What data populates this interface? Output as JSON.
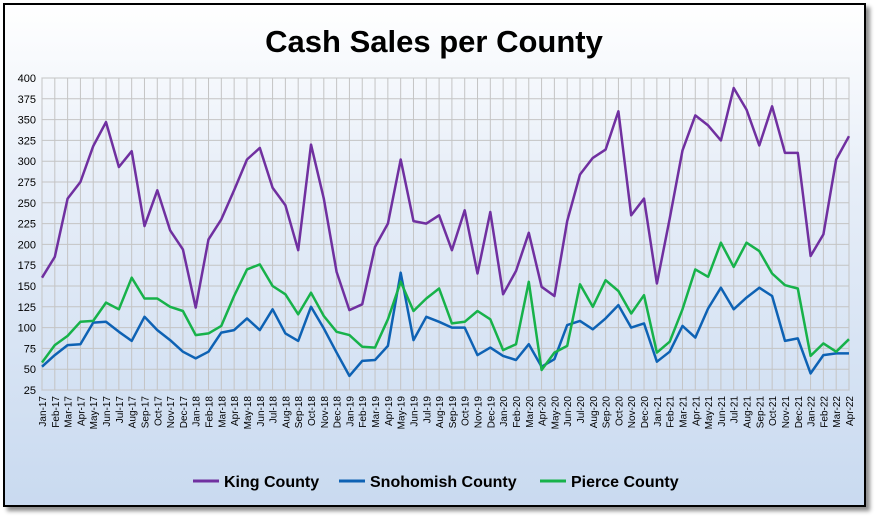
{
  "chart_data": {
    "type": "line",
    "title": "Cash Sales per County",
    "xlabel": "",
    "ylabel": "",
    "ylim": [
      25,
      400
    ],
    "yticks": [
      25,
      50,
      75,
      100,
      125,
      150,
      175,
      200,
      225,
      250,
      275,
      300,
      325,
      350,
      375,
      400
    ],
    "grid": true,
    "legend": "bottom",
    "categories": [
      "Jan-17",
      "Feb-17",
      "Mar-17",
      "Apr-17",
      "May-17",
      "Jun-17",
      "Jul-17",
      "Aug-17",
      "Sep-17",
      "Oct-17",
      "Nov-17",
      "Dec-17",
      "Jan-18",
      "Feb-18",
      "Mar-18",
      "Apr-18",
      "May-18",
      "Jun-18",
      "Jul-18",
      "Aug-18",
      "Sep-18",
      "Oct-18",
      "Nov-18",
      "Dec-18",
      "Jan-19",
      "Feb-19",
      "Mar-19",
      "Apr-19",
      "May-19",
      "Jun-19",
      "Jul-19",
      "Aug-19",
      "Sep-19",
      "Oct-19",
      "Nov-19",
      "Dec-19",
      "Jan-20",
      "Feb-20",
      "Mar-20",
      "Apr-20",
      "May-20",
      "Jun-20",
      "Jul-20",
      "Aug-20",
      "Sep-20",
      "Oct-20",
      "Nov-20",
      "Dec-20",
      "Jan-21",
      "Feb-21",
      "Mar-21",
      "Apr-21",
      "May-21",
      "Jun-21",
      "Jul-21",
      "Aug-21",
      "Sep-21",
      "Oct-21",
      "Nov-21",
      "Dec-21",
      "Jan-22",
      "Feb-22",
      "Mar-22",
      "Apr-22"
    ],
    "xticks_shown": [
      "Jan-17",
      "Mar-17",
      "May-17",
      "Jul-17",
      "Sep-17",
      "Nov-17",
      "Jan-18",
      "Mar-18",
      "May-18",
      "Jul-18",
      "Sep-18",
      "Nov-18",
      "Jan-19",
      "Mar-19",
      "May-19",
      "Jul-19",
      "Sep-19",
      "Nov-19",
      "Jan-20",
      "Mar-20",
      "May-20",
      "Jul-20",
      "Sep-20",
      "Nov-20",
      "Jan-21",
      "Mar-21",
      "May-21",
      "Jul-21",
      "Sep-21",
      "Nov-21",
      "Jan-22",
      "Mar-22",
      "Feb-17",
      "Apr-17",
      "Jun-17",
      "Aug-17",
      "Oct-17",
      "Dec-17",
      "Feb-18",
      "Apr-18",
      "Jun-18",
      "Aug-18",
      "Oct-18",
      "Dec-18",
      "Feb-19",
      "Apr-19",
      "Jun-19",
      "Aug-19",
      "Oct-19",
      "Dec-19",
      "Feb-20",
      "Apr-20",
      "Jun-20",
      "Aug-20",
      "Oct-20",
      "Dec-20",
      "Feb-21",
      "Apr-21",
      "Jun-21",
      "Aug-21",
      "Oct-21",
      "Dec-21",
      "Feb-22",
      "Apr-22"
    ],
    "series": [
      {
        "name": "King County",
        "color": "#7030a0",
        "values": [
          160,
          185,
          255,
          275,
          318,
          347,
          293,
          312,
          222,
          265,
          217,
          194,
          124,
          206,
          230,
          265,
          302,
          316,
          268,
          247,
          193,
          320,
          255,
          167,
          121,
          128,
          197,
          225,
          302,
          228,
          225,
          235,
          193,
          241,
          165,
          239,
          140,
          168,
          214,
          149,
          138,
          228,
          284,
          304,
          314,
          360,
          235,
          255,
          153,
          231,
          313,
          355,
          343,
          325,
          388,
          362,
          319,
          366,
          310,
          310,
          186,
          212,
          302,
          330
        ]
      },
      {
        "name": "Snohomish County",
        "color": "#0e62b4",
        "values": [
          53,
          67,
          79,
          80,
          106,
          107,
          95,
          84,
          113,
          97,
          85,
          71,
          63,
          71,
          94,
          97,
          111,
          97,
          122,
          93,
          84,
          125,
          99,
          70,
          42,
          60,
          61,
          78,
          166,
          85,
          113,
          107,
          100,
          100,
          67,
          76,
          66,
          61,
          80,
          53,
          62,
          103,
          108,
          98,
          111,
          127,
          100,
          105,
          59,
          71,
          102,
          88,
          123,
          148,
          122,
          136,
          148,
          138,
          84,
          87,
          45,
          67,
          69,
          69
        ]
      },
      {
        "name": "Pierce County",
        "color": "#17b24a",
        "values": [
          58,
          79,
          90,
          107,
          108,
          130,
          122,
          160,
          135,
          135,
          125,
          120,
          91,
          93,
          102,
          138,
          170,
          176,
          150,
          140,
          116,
          142,
          114,
          95,
          91,
          77,
          76,
          110,
          155,
          120,
          135,
          147,
          105,
          107,
          120,
          110,
          73,
          80,
          155,
          49,
          70,
          78,
          152,
          125,
          157,
          144,
          117,
          139,
          70,
          83,
          122,
          170,
          161,
          202,
          173,
          202,
          192,
          165,
          151,
          147,
          66,
          81,
          71,
          86
        ]
      }
    ]
  }
}
